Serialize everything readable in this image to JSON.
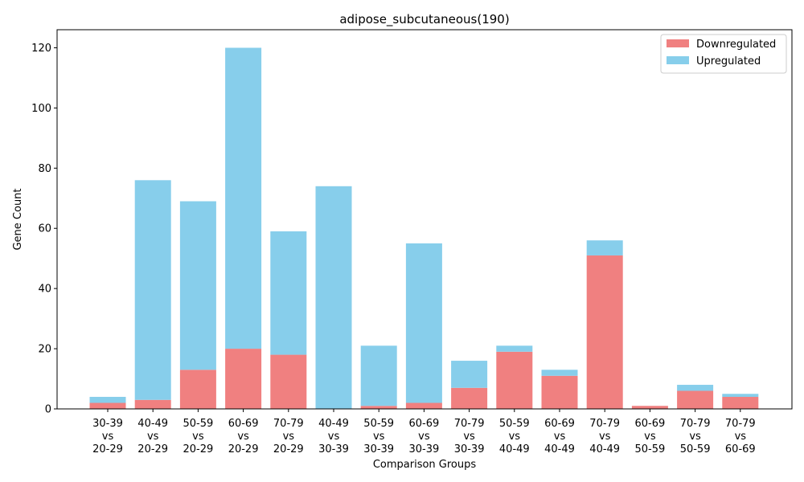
{
  "chart_data": {
    "type": "bar",
    "stacked": true,
    "title": "adipose_subcutaneous(190)",
    "xlabel": "Comparison Groups",
    "ylabel": "Gene Count",
    "ylim": [
      0,
      126
    ],
    "yticks": [
      0,
      20,
      40,
      60,
      80,
      100,
      120
    ],
    "grid": false,
    "legend_position": "top-right",
    "categories": [
      [
        "30-39",
        "vs",
        "20-29"
      ],
      [
        "40-49",
        "vs",
        "20-29"
      ],
      [
        "50-59",
        "vs",
        "20-29"
      ],
      [
        "60-69",
        "vs",
        "20-29"
      ],
      [
        "70-79",
        "vs",
        "20-29"
      ],
      [
        "40-49",
        "vs",
        "30-39"
      ],
      [
        "50-59",
        "vs",
        "30-39"
      ],
      [
        "60-69",
        "vs",
        "30-39"
      ],
      [
        "70-79",
        "vs",
        "30-39"
      ],
      [
        "50-59",
        "vs",
        "40-49"
      ],
      [
        "60-69",
        "vs",
        "40-49"
      ],
      [
        "70-79",
        "vs",
        "40-49"
      ],
      [
        "60-69",
        "vs",
        "50-59"
      ],
      [
        "70-79",
        "vs",
        "50-59"
      ],
      [
        "70-79",
        "vs",
        "60-69"
      ]
    ],
    "series": [
      {
        "name": "Downregulated",
        "color": "#f08080",
        "values": [
          2,
          3,
          13,
          20,
          18,
          0,
          1,
          2,
          7,
          19,
          11,
          51,
          1,
          6,
          4
        ]
      },
      {
        "name": "Upregulated",
        "color": "#87ceeb",
        "values": [
          2,
          73,
          56,
          100,
          41,
          74,
          20,
          53,
          9,
          2,
          2,
          5,
          0,
          2,
          1
        ]
      }
    ]
  }
}
